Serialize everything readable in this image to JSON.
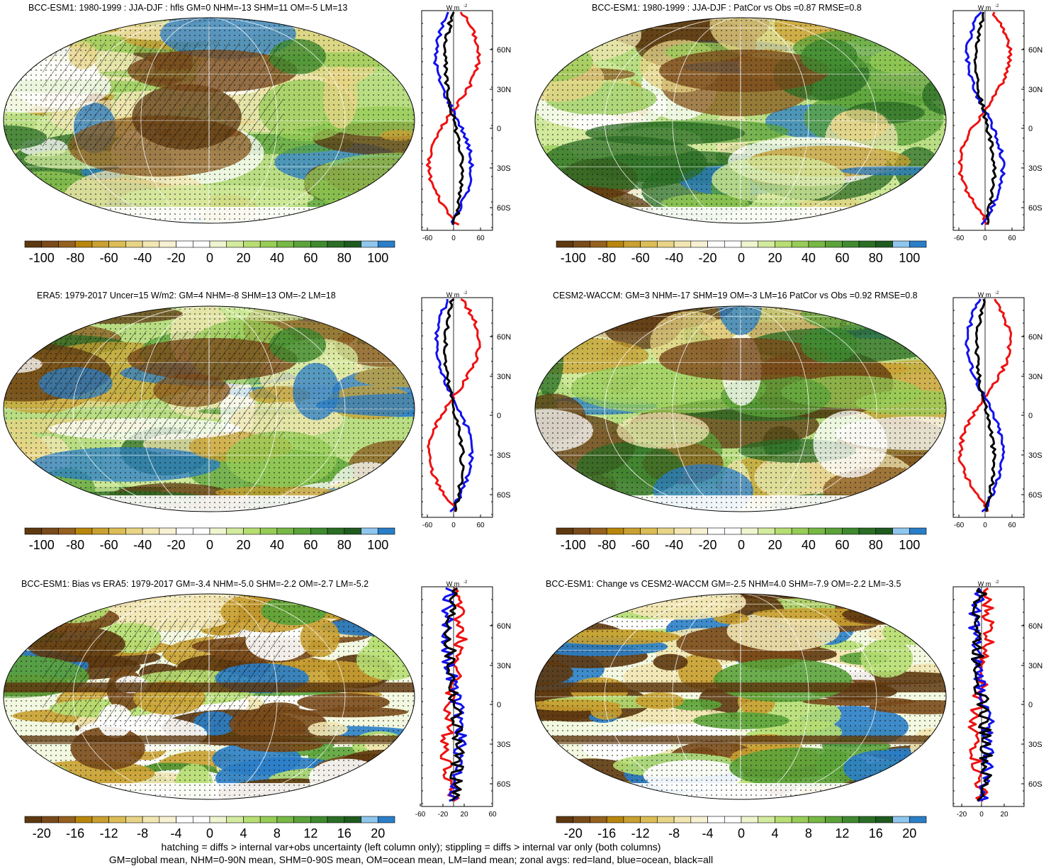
{
  "panels": [
    {
      "title": "BCC-ESM1: 1980-1999 : JJA-DJF : hfls GM=0 NHM=-13 SHM=11 OM=-5 LM=13",
      "kind": "clim",
      "hatch": true
    },
    {
      "title": "BCC-ESM1: 1980-1999 : JJA-DJF : PatCor vs Obs =0.87 RMSE=0.8",
      "kind": "clim",
      "hatch": false
    },
    {
      "title": "ERA5: 1979-2017 Uncer=15 W/m2: GM=4 NHM=-8 SHM=13 OM=-2 LM=18",
      "kind": "clim",
      "hatch": true
    },
    {
      "title": "CESM2-WACCM: GM=3 NHM=-17 SHM=19 OM=-3 LM=16 PatCor vs Obs =0.92 RMSE=0.8",
      "kind": "clim",
      "hatch": false
    },
    {
      "title": "BCC-ESM1: Bias vs ERA5: 1979-2017 GM=-3.4 NHM=-5.0 SHM=-2.2 OM=-2.7 LM=-5.2",
      "kind": "diff",
      "hatch": true
    },
    {
      "title": "BCC-ESM1: Change vs CESM2-WACCM GM=-2.5 NHM=4.0 SHM=-7.9 OM=-2.2 LM=-3.5",
      "kind": "diff",
      "hatch": false
    }
  ],
  "zonal_axis": {
    "unit_label": "W m",
    "unit_exp": "-2",
    "lat_ticks": [
      "60N",
      "30N",
      "0",
      "30S",
      "60S"
    ],
    "x_ticks_clim": [
      "-60",
      "0",
      "60"
    ],
    "x_ticks_diff_left": [
      "-60",
      "-20",
      "20",
      "60"
    ],
    "x_ticks_diff_right": [
      "-20",
      "0",
      "20"
    ],
    "line_colors": {
      "land": "#ee1111",
      "ocean": "#1111ee",
      "all": "#000000"
    }
  },
  "colorbars": {
    "clim_labels": [
      "-100",
      "-80",
      "-60",
      "-40",
      "-20",
      "0",
      "20",
      "40",
      "60",
      "80",
      "100"
    ],
    "diff_labels": [
      "-20",
      "-16",
      "-12",
      "-8",
      "-4",
      "0",
      "4",
      "8",
      "12",
      "16",
      "20"
    ],
    "colors": [
      "#5e3810",
      "#7a4a1a",
      "#95611f",
      "#b8860b",
      "#c9a031",
      "#dcbc55",
      "#e8d486",
      "#f2e6b2",
      "#f7f0d2",
      "#ffffff",
      "#ffffff",
      "#eef5cf",
      "#d3eb9e",
      "#b6de72",
      "#97cc57",
      "#78b845",
      "#5ba33a",
      "#3f8a2f",
      "#2b6e26",
      "#1f5a1f",
      "#8fc6ee",
      "#2a7ec8"
    ]
  },
  "footer": {
    "line1": "hatching = diffs > internal var+obs uncertainty (left column only); stippling = diffs > internal var only (both columns)",
    "line2": "GM=global mean, NHM=0-90N mean, SHM=0-90S mean, OM=ocean mean, LM=land mean; zonal avgs: red=land, blue=ocean, black=all"
  }
}
